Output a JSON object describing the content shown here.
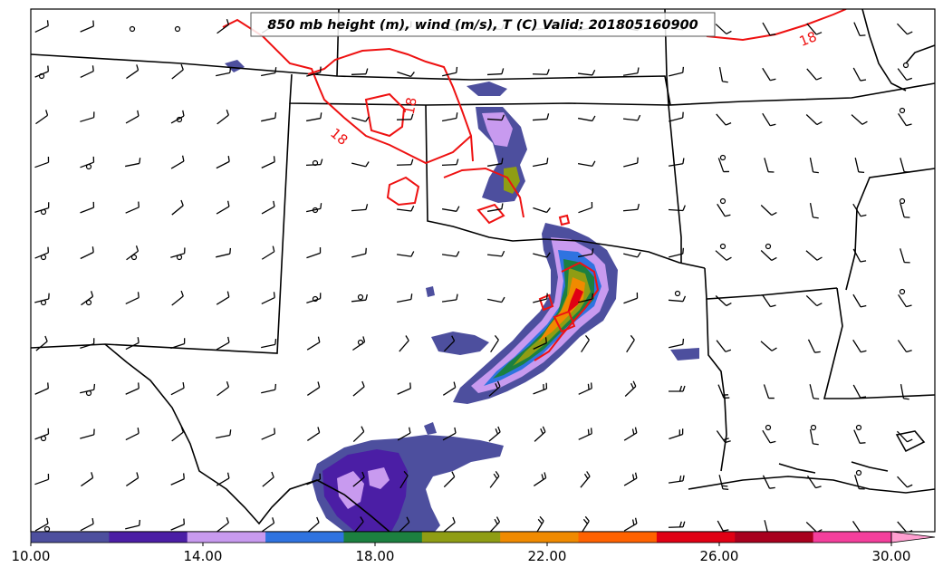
{
  "title": "850 mb height (m), wind (m/s), T (C) Valid: 201805160900",
  "contour_label": "18",
  "colorbar": {
    "ticks": [
      "10.00",
      "14.00",
      "18.00",
      "22.00",
      "26.00",
      "30.00"
    ],
    "colors": [
      "#4d4f9e",
      "#4b1ea5",
      "#c89aef",
      "#2f73e0",
      "#1c8040",
      "#8f9d14",
      "#f08a00",
      "#ff6200",
      "#e00014",
      "#a8001e",
      "#f43f9c",
      "#ff9fd0"
    ]
  },
  "wind_barb_icon": "wind-barb-icon",
  "calm_wind_icon": "calm-wind-icon"
}
